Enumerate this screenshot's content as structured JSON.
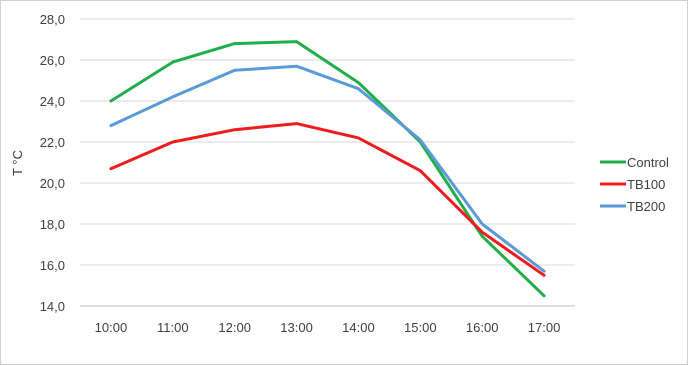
{
  "chart_data": {
    "type": "line",
    "title": "",
    "xlabel": "",
    "ylabel": "T °C",
    "categories": [
      "10:00",
      "11:00",
      "12:00",
      "13:00",
      "14:00",
      "15:00",
      "16:00",
      "17:00"
    ],
    "y_ticks": [
      "14,0",
      "16,0",
      "18,0",
      "20,0",
      "22,0",
      "24,0",
      "26,0",
      "28,0"
    ],
    "ylim": [
      14,
      28
    ],
    "grid": true,
    "legend_position": "right",
    "series": [
      {
        "name": "Control",
        "color": "#1fae4a",
        "values": [
          24.0,
          25.9,
          26.8,
          26.9,
          24.9,
          22.0,
          17.4,
          14.5
        ]
      },
      {
        "name": "TB100",
        "color": "#ee1c1c",
        "values": [
          20.7,
          22.0,
          22.6,
          22.9,
          22.2,
          20.6,
          17.6,
          15.5
        ]
      },
      {
        "name": "TB200",
        "color": "#5b9bd5",
        "values": [
          22.8,
          24.2,
          25.5,
          25.7,
          24.6,
          22.1,
          18.0,
          15.7
        ]
      }
    ]
  }
}
